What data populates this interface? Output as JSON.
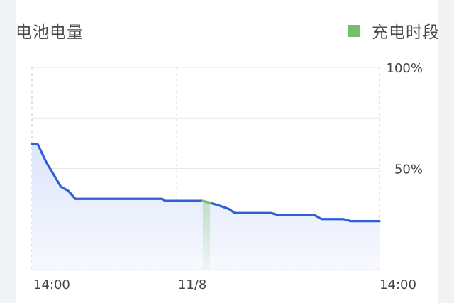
{
  "header": {
    "title": "电池电量",
    "legend_label": "充电时段"
  },
  "colors": {
    "line": "#2f5fd6",
    "charging": "#74c06a",
    "area_top": "#dde5fb",
    "area_bottom": "#f7f9fe",
    "grid": "#e6e7ea",
    "dashed": "#c8c9cc"
  },
  "chart_data": {
    "type": "line",
    "title": "",
    "xlabel": "",
    "ylabel": "",
    "x_tick_labels": [
      "14:00",
      "11/8",
      "14:00"
    ],
    "y_tick_labels": [
      "100%",
      "50%"
    ],
    "ylim": [
      0,
      100
    ],
    "xlim": [
      0,
      24
    ],
    "x_ticks": [
      0,
      10,
      24
    ],
    "y_ticks": [
      100,
      50
    ],
    "grid": true,
    "legend": "top-right",
    "series": [
      {
        "values_x": [
          0,
          0.4,
          1.0,
          2.0,
          2.5,
          3.0,
          9.0,
          9.2,
          11.8,
          12.8,
          13.6,
          14.0,
          16.5,
          17.0,
          19.5,
          20.0,
          21.5,
          22.0,
          24.0
        ],
        "values_y": [
          62,
          62,
          53,
          41,
          39,
          35,
          35,
          34,
          34,
          32,
          30,
          28,
          28,
          27,
          27,
          25,
          25,
          24,
          24
        ]
      }
    ],
    "charging_periods": [
      {
        "start": 11.8,
        "end": 12.3
      }
    ]
  }
}
